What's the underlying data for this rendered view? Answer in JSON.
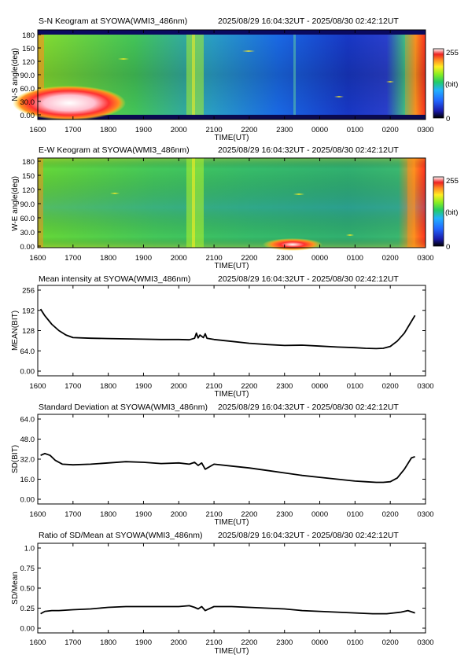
{
  "page": {
    "time_range": "2025/08/29 16:04:32UT - 2025/08/30 02:42:12UT"
  },
  "colors": {
    "line": "#000000",
    "keogram_bg": "#ffffff",
    "colorbar_stops": [
      "#000000",
      "#1a1aa8",
      "#2266ff",
      "#22b0ff",
      "#22cc66",
      "#88ee22",
      "#ffee22",
      "#ff8822",
      "#ee2222",
      "#ffffff"
    ]
  },
  "xaxis": {
    "ticks": [
      "1600",
      "1700",
      "1800",
      "1900",
      "2000",
      "2100",
      "2200",
      "2300",
      "0000",
      "0100",
      "0200",
      "0300"
    ],
    "label": "TIME(UT)"
  },
  "keograms": [
    {
      "title": "S-N Keogram at SYOWA(WMI3_486nm)",
      "ylabel": "N-S angle(deg)",
      "yticks": [
        "0.00",
        "30.0",
        "60.0",
        "90.0",
        "120",
        "150",
        "180"
      ],
      "colorbar": {
        "max": "255",
        "unit": "(bit)",
        "min": "0"
      }
    },
    {
      "title": "E-W Keogram at SYOWA(WMI3_486nm)",
      "ylabel": "W-E angle(deg)",
      "yticks": [
        "0.00",
        "30.0",
        "60.0",
        "90.0",
        "120",
        "150",
        "180"
      ],
      "colorbar": {
        "max": "255",
        "unit": "(bit)",
        "min": "0"
      }
    }
  ],
  "chart_data": [
    {
      "type": "line",
      "title": "Mean intensity at SYOWA(WMI3_486nm)",
      "ylabel": "MEAN(BIT)",
      "yticks": [
        "0.00",
        "64.0",
        "128",
        "192",
        "256"
      ],
      "ylim": [
        0,
        256
      ],
      "xlim": [
        16.0,
        27.0
      ],
      "x": [
        16.08,
        16.2,
        16.4,
        16.6,
        16.8,
        17.0,
        17.5,
        18.0,
        18.5,
        19.0,
        19.5,
        20.0,
        20.3,
        20.45,
        20.5,
        20.55,
        20.6,
        20.7,
        20.75,
        20.8,
        21.0,
        21.5,
        22.0,
        22.5,
        23.0,
        23.5,
        24.0,
        24.5,
        25.0,
        25.3,
        25.6,
        25.8,
        26.0,
        26.2,
        26.4,
        26.55,
        26.7
      ],
      "y": [
        196,
        175,
        148,
        128,
        114,
        106,
        104,
        103,
        102,
        101,
        100,
        100,
        99,
        104,
        120,
        105,
        114,
        106,
        118,
        104,
        100,
        94,
        88,
        84,
        81,
        82,
        79,
        76,
        74,
        72,
        71,
        72,
        78,
        95,
        120,
        148,
        176
      ]
    },
    {
      "type": "line",
      "title": "Standard Deviation at SYOWA(WMI3_486nm)",
      "ylabel": "SD(BIT)",
      "yticks": [
        "0.00",
        "16.0",
        "32.0",
        "48.0",
        "64.0"
      ],
      "ylim": [
        0,
        64
      ],
      "xlim": [
        16.0,
        27.0
      ],
      "x": [
        16.08,
        16.2,
        16.35,
        16.5,
        16.7,
        17.0,
        17.5,
        18.0,
        18.5,
        19.0,
        19.5,
        20.0,
        20.3,
        20.45,
        20.55,
        20.65,
        20.75,
        21.0,
        21.5,
        22.0,
        22.5,
        23.0,
        23.5,
        24.0,
        24.5,
        25.0,
        25.3,
        25.6,
        25.8,
        26.0,
        26.2,
        26.4,
        26.6,
        26.7
      ],
      "y": [
        35,
        36.5,
        35,
        31,
        28,
        27.5,
        28,
        29,
        30,
        29.5,
        28.5,
        29,
        28,
        29.5,
        27,
        29,
        24,
        28,
        26.5,
        25,
        23,
        21,
        19,
        17.5,
        16,
        14.5,
        14,
        13.5,
        13.5,
        14,
        17,
        24,
        33,
        34
      ]
    },
    {
      "type": "line",
      "title": "Ratio of SD/Mean at SYOWA(WMI3_486nm)",
      "ylabel": "SD/Mean",
      "yticks": [
        "0.00",
        "0.25",
        "0.50",
        "0.75",
        "1.0"
      ],
      "ylim": [
        0,
        1.0
      ],
      "xlim": [
        16.0,
        27.0
      ],
      "x": [
        16.08,
        16.2,
        16.4,
        16.6,
        17.0,
        17.5,
        18.0,
        18.5,
        19.0,
        19.5,
        20.0,
        20.3,
        20.45,
        20.55,
        20.65,
        20.75,
        21.0,
        21.5,
        22.0,
        22.5,
        23.0,
        23.5,
        24.0,
        24.5,
        25.0,
        25.5,
        25.9,
        26.1,
        26.3,
        26.5,
        26.7
      ],
      "y": [
        0.18,
        0.21,
        0.22,
        0.22,
        0.23,
        0.24,
        0.26,
        0.27,
        0.27,
        0.27,
        0.27,
        0.28,
        0.26,
        0.24,
        0.27,
        0.22,
        0.27,
        0.27,
        0.26,
        0.25,
        0.24,
        0.22,
        0.21,
        0.2,
        0.19,
        0.18,
        0.18,
        0.19,
        0.2,
        0.22,
        0.19
      ]
    }
  ]
}
